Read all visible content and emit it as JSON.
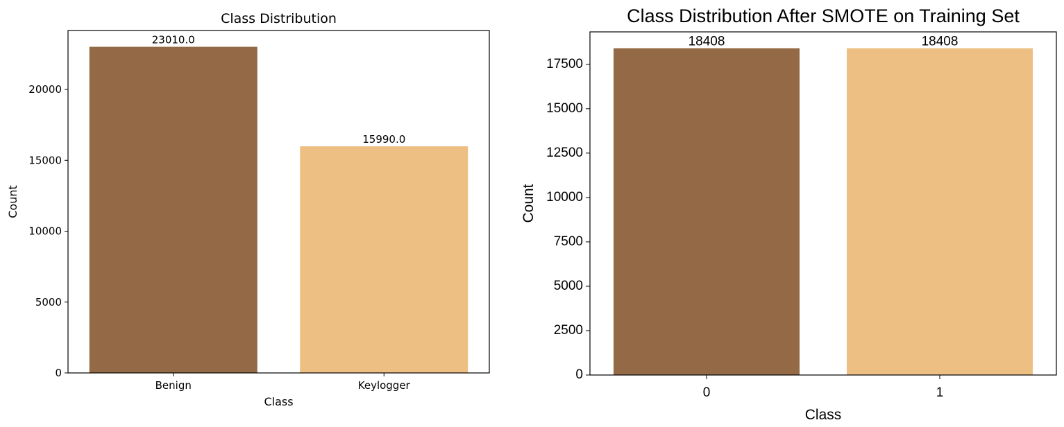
{
  "chart_data": [
    {
      "type": "bar",
      "title": "Class Distribution",
      "xlabel": "Class",
      "ylabel": "Count",
      "categories": [
        "Benign",
        "Keylogger"
      ],
      "values": [
        23010,
        15990
      ],
      "data_labels": [
        "23010.0",
        "15990.0"
      ],
      "colors": [
        "#946946",
        "#edbf82"
      ],
      "ylim": [
        0,
        24160
      ],
      "yticks": [
        0,
        5000,
        10000,
        15000,
        20000
      ],
      "ytick_labels": [
        "0",
        "5000",
        "10000",
        "15000",
        "20000"
      ],
      "grid": false
    },
    {
      "type": "bar",
      "title": "Class Distribution After SMOTE on Training Set",
      "xlabel": "Class",
      "ylabel": "Count",
      "categories": [
        "0",
        "1"
      ],
      "values": [
        18408,
        18408
      ],
      "data_labels": [
        "18408",
        "18408"
      ],
      "colors": [
        "#946946",
        "#edbf82"
      ],
      "ylim": [
        0,
        19328
      ],
      "yticks": [
        0,
        2500,
        5000,
        7500,
        10000,
        12500,
        15000,
        17500
      ],
      "ytick_labels": [
        "0",
        "2500",
        "5000",
        "7500",
        "10000",
        "12500",
        "15000",
        "17500"
      ],
      "grid": false
    }
  ]
}
